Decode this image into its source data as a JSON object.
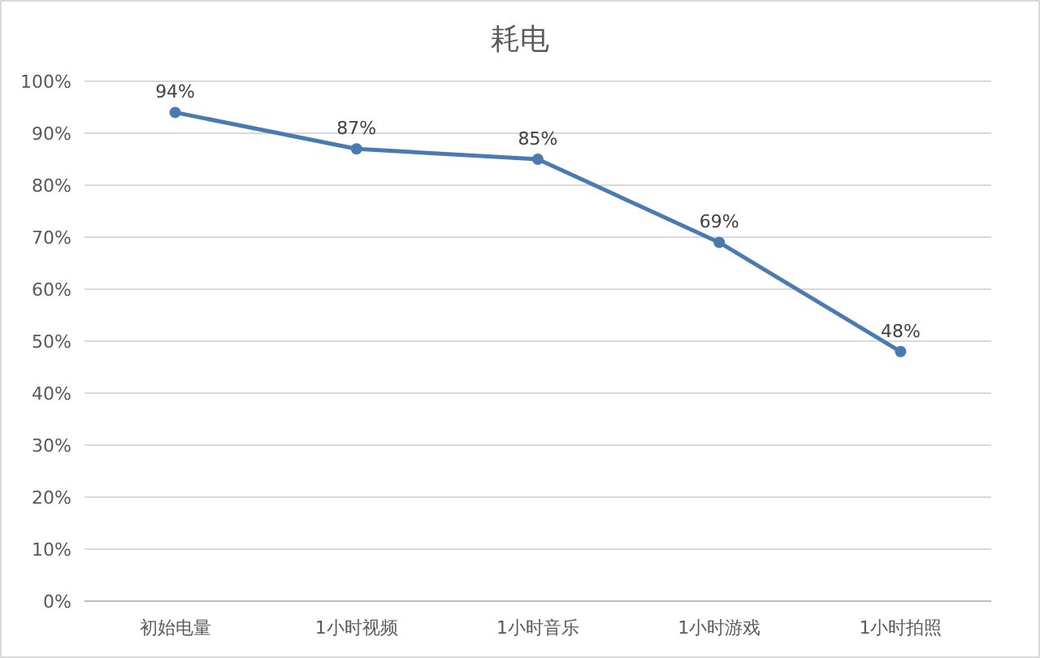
{
  "chart_data": {
    "type": "line",
    "title": "耗电",
    "categories": [
      "初始电量",
      "1小时视频",
      "1小时音乐",
      "1小时游戏",
      "1小时拍照"
    ],
    "series": [
      {
        "color": "#4a7ab0",
        "values": [
          94,
          87,
          85,
          69,
          48
        ],
        "value_labels": [
          "94%",
          "87%",
          "85%",
          "69%",
          "48%"
        ]
      }
    ],
    "ylim": [
      0,
      100
    ],
    "yticks": [
      {
        "value": 0,
        "label": "0%"
      },
      {
        "value": 10,
        "label": "10%"
      },
      {
        "value": 20,
        "label": "20%"
      },
      {
        "value": 30,
        "label": "30%"
      },
      {
        "value": 40,
        "label": "40%"
      },
      {
        "value": 50,
        "label": "50%"
      },
      {
        "value": 60,
        "label": "60%"
      },
      {
        "value": 70,
        "label": "70%"
      },
      {
        "value": 80,
        "label": "80%"
      },
      {
        "value": 90,
        "label": "90%"
      },
      {
        "value": 100,
        "label": "100%"
      }
    ],
    "grid": "y",
    "marker": "circle",
    "line_style": "solid"
  }
}
